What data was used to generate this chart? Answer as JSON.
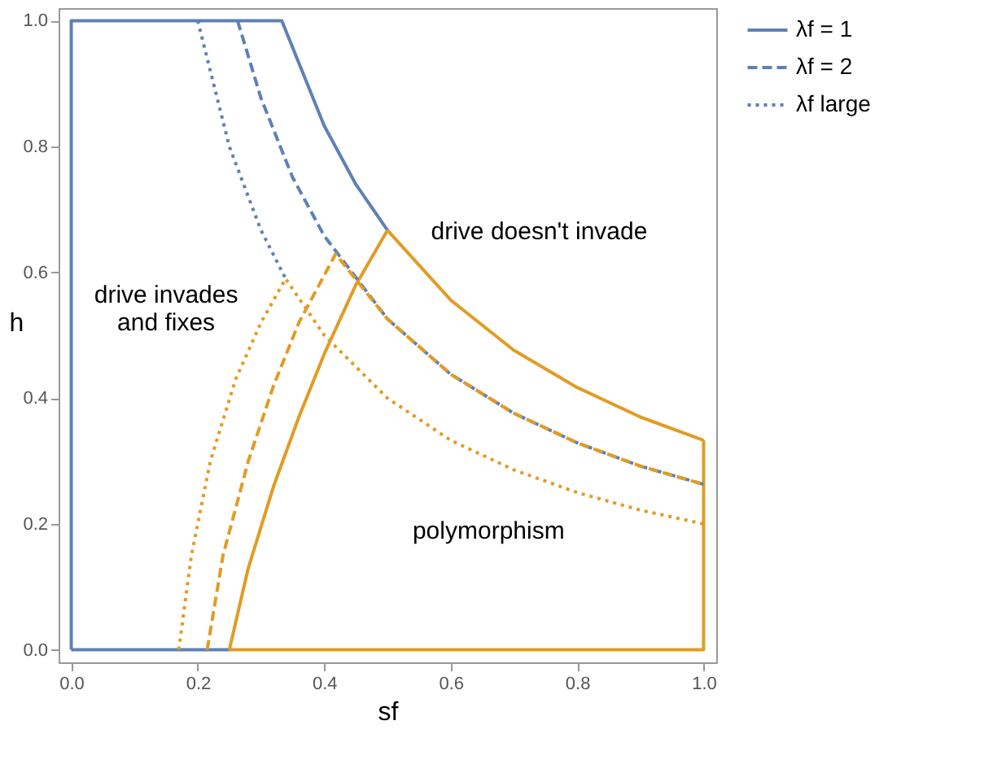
{
  "chart_data": {
    "type": "line",
    "xlabel": "sf",
    "ylabel": "h",
    "xlim": [
      -0.02,
      1.02
    ],
    "ylim": [
      -0.02,
      1.02
    ],
    "xticks": [
      {
        "value": 0,
        "label": "0.0"
      },
      {
        "value": 0.2,
        "label": "0.2"
      },
      {
        "value": 0.4,
        "label": "0.4"
      },
      {
        "value": 0.6,
        "label": "0.6"
      },
      {
        "value": 0.8,
        "label": "0.8"
      },
      {
        "value": 1,
        "label": "1.0"
      }
    ],
    "yticks": [
      {
        "value": 0,
        "label": "0.0"
      },
      {
        "value": 0.2,
        "label": "0.2"
      },
      {
        "value": 0.4,
        "label": "0.4"
      },
      {
        "value": 0.6,
        "label": "0.6"
      },
      {
        "value": 0.8,
        "label": "0.8"
      },
      {
        "value": 1,
        "label": "1.0"
      }
    ],
    "grid": false,
    "legend": "right",
    "marker": "none",
    "series": [
      {
        "name": "λf = 1",
        "color": "#5e81b5",
        "line_style": "solid",
        "x": [
          0,
          0,
          0.333,
          0.4,
          0.45,
          0.5
        ],
        "values": [
          0,
          1,
          1,
          0.833,
          0.74,
          0.667
        ]
      },
      {
        "color": "#5e81b5",
        "line_style": "solid",
        "x": [
          0,
          0.25
        ],
        "values": [
          0,
          0
        ]
      },
      {
        "color": "#e19c24",
        "line_style": "solid",
        "x": [
          0.25,
          0.28,
          0.32,
          0.36,
          0.4,
          0.45,
          0.5
        ],
        "values": [
          0,
          0.13,
          0.26,
          0.37,
          0.47,
          0.58,
          0.667
        ]
      },
      {
        "color": "#e19c24",
        "line_style": "solid",
        "x": [
          0.5,
          0.6,
          0.7,
          0.8,
          0.9,
          1
        ],
        "values": [
          0.667,
          0.556,
          0.476,
          0.417,
          0.37,
          0.333
        ]
      },
      {
        "color": "#e19c24",
        "line_style": "solid",
        "x": [
          0.25,
          1,
          1
        ],
        "values": [
          0,
          0,
          0.333
        ]
      },
      {
        "name": "λf = 2",
        "color": "#5e81b5",
        "line_style": "dashed",
        "x": [
          0.263,
          0.3,
          0.35,
          0.4,
          0.5,
          0.6,
          0.7,
          0.8,
          0.9,
          1
        ],
        "values": [
          1,
          0.877,
          0.751,
          0.658,
          0.526,
          0.438,
          0.376,
          0.329,
          0.292,
          0.263
        ]
      },
      {
        "color": "#e19c24",
        "line_style": "dashed",
        "x": [
          0.215,
          0.24,
          0.28,
          0.32,
          0.36,
          0.418,
          0.5,
          0.6,
          0.7,
          0.8,
          0.9,
          1
        ],
        "values": [
          0,
          0.15,
          0.3,
          0.42,
          0.52,
          0.629,
          0.526,
          0.438,
          0.376,
          0.329,
          0.292,
          0.263
        ]
      },
      {
        "name": "λf large",
        "color": "#5e81b5",
        "line_style": "dotted",
        "x": [
          0.2,
          0.25,
          0.3,
          0.339
        ],
        "values": [
          1,
          0.8,
          0.667,
          0.59
        ]
      },
      {
        "color": "#e19c24",
        "line_style": "dotted",
        "x": [
          0.17,
          0.19,
          0.22,
          0.26,
          0.3,
          0.339,
          0.4,
          0.5,
          0.6,
          0.7,
          0.8,
          0.9,
          1
        ],
        "values": [
          0,
          0.15,
          0.3,
          0.43,
          0.52,
          0.59,
          0.5,
          0.4,
          0.333,
          0.286,
          0.25,
          0.222,
          0.2
        ]
      }
    ],
    "annotations": [
      "drive doesn't invade",
      "drive invades\nand fixes",
      "polymorphism"
    ]
  }
}
